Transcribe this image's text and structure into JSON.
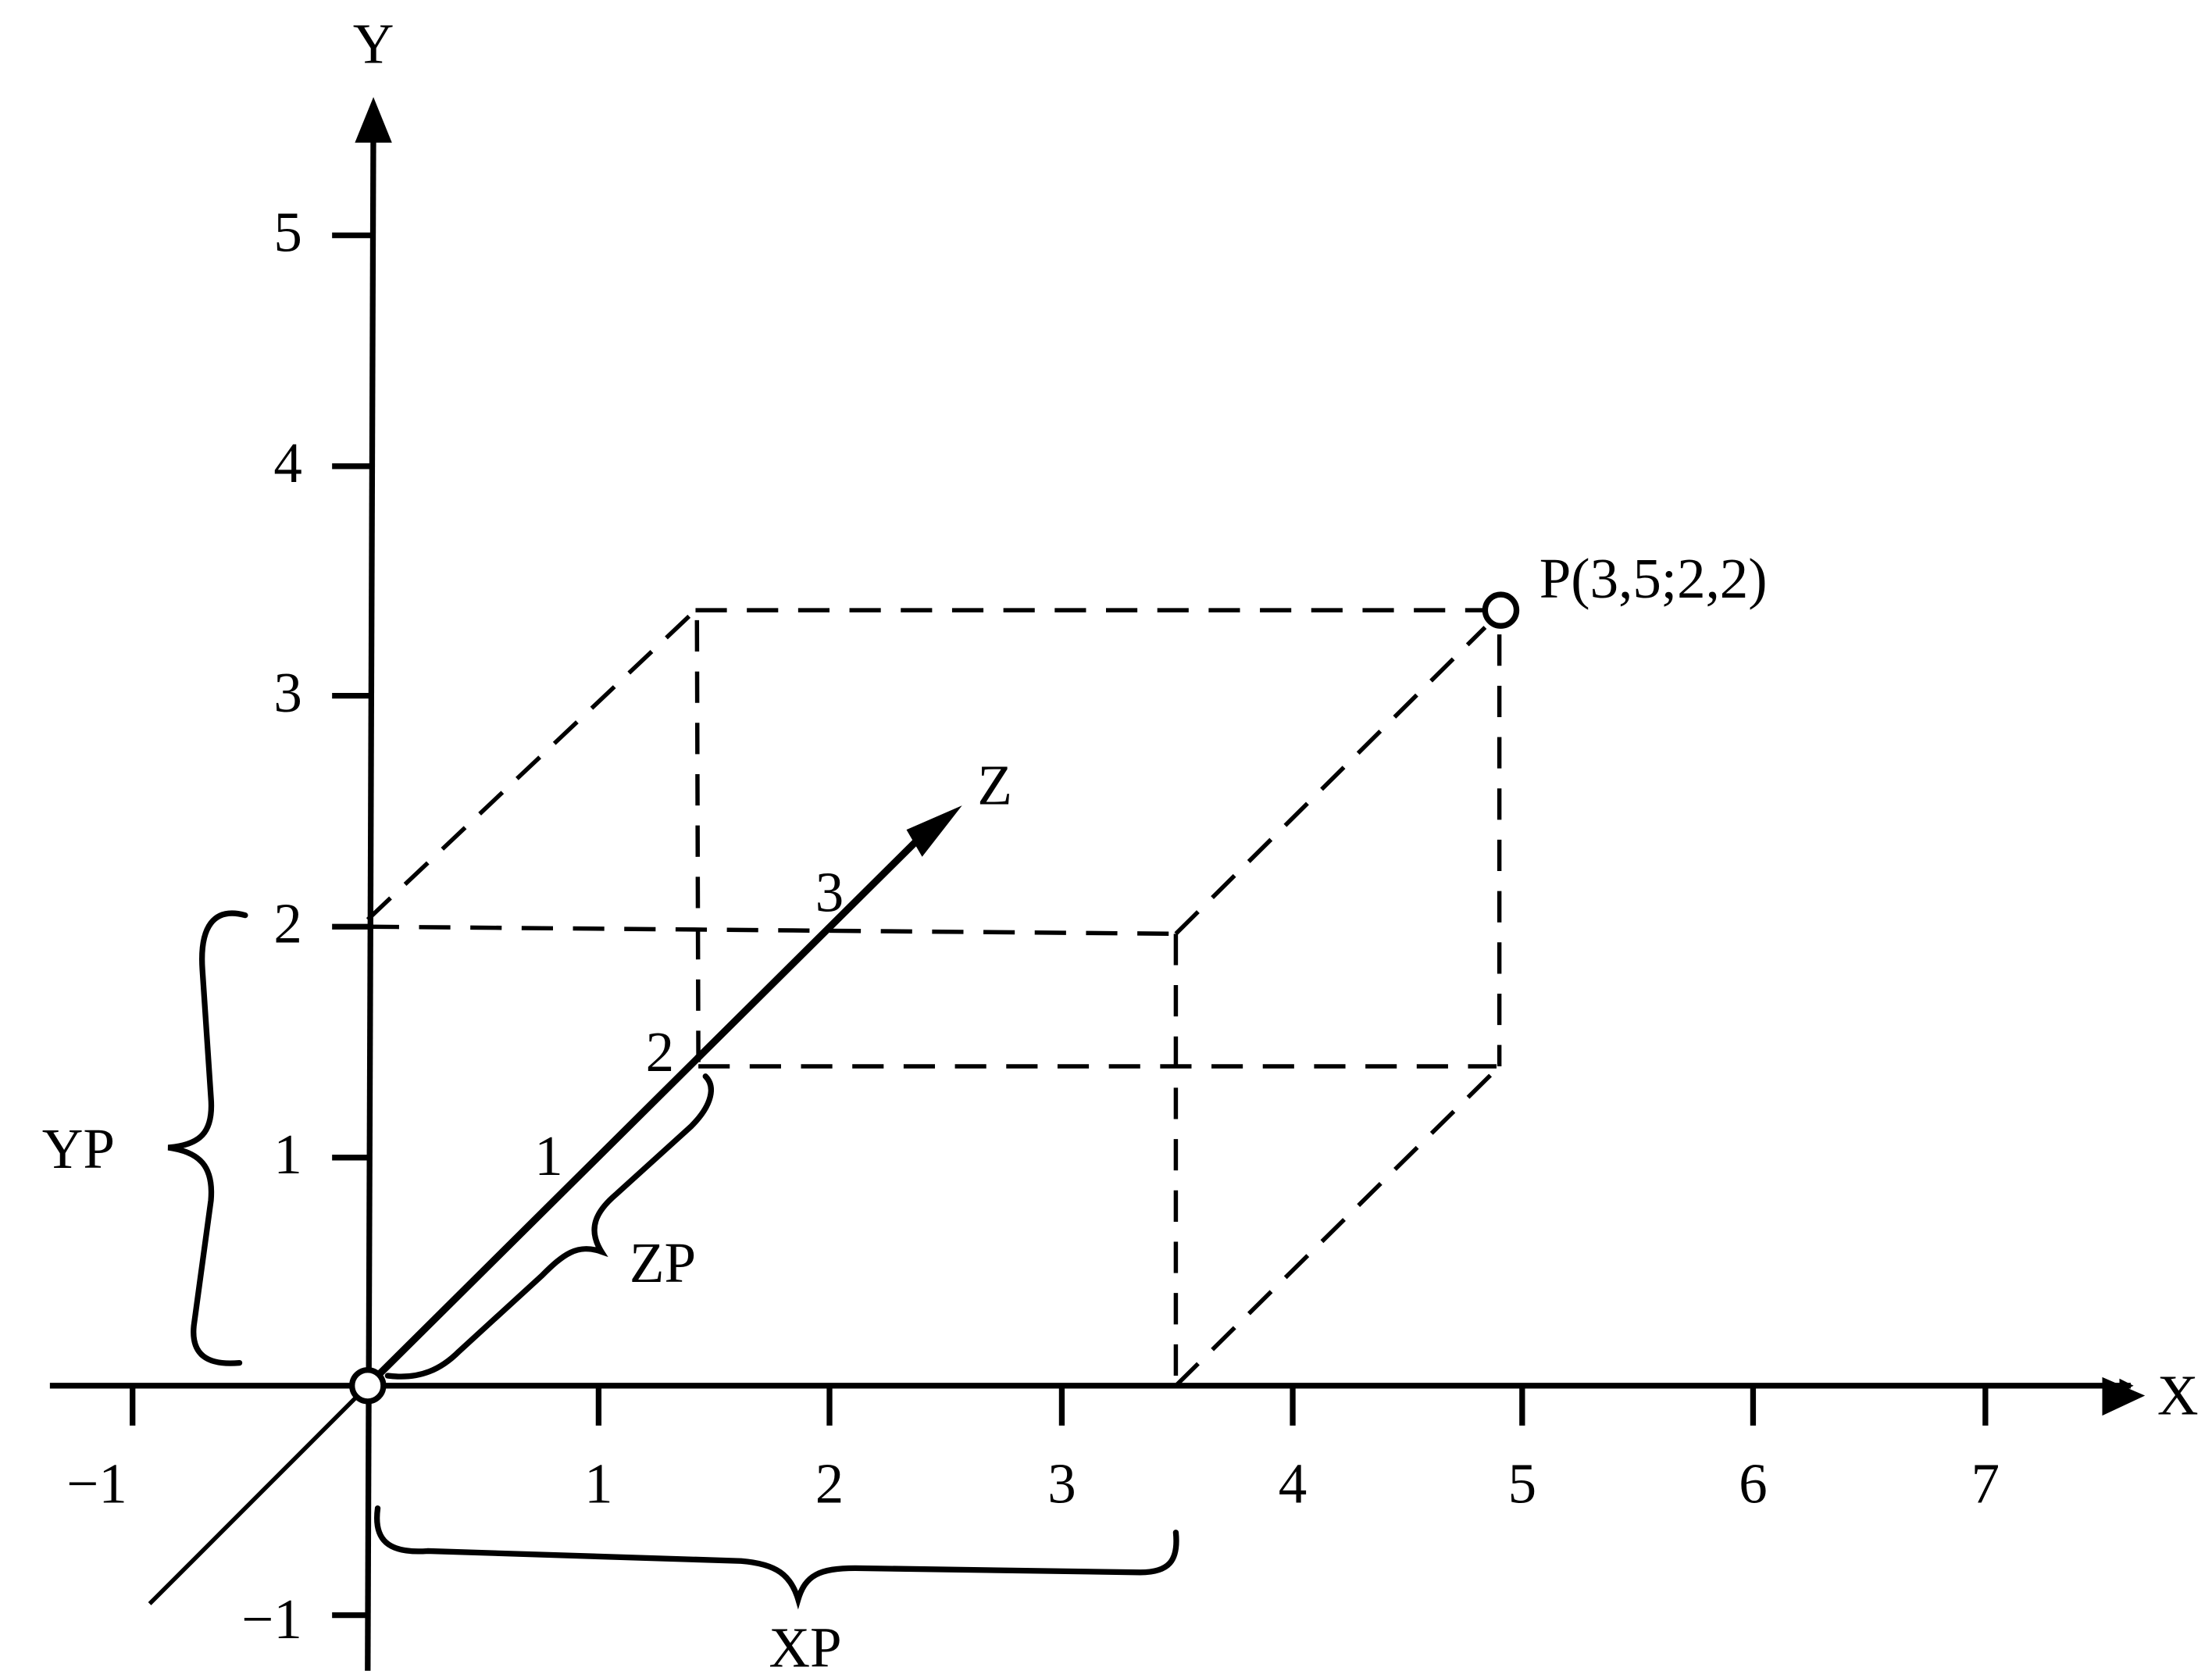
{
  "axes": {
    "x_label": "X",
    "y_label": "Y",
    "z_label": "Z"
  },
  "x_ticks": [
    "−1",
    "1",
    "2",
    "3",
    "4",
    "5",
    "6",
    "7"
  ],
  "y_ticks": [
    "5",
    "4",
    "3",
    "2",
    "1",
    "−1"
  ],
  "z_ticks": [
    "1",
    "2",
    "3"
  ],
  "point": {
    "label": "P(3,5;2,2)"
  },
  "braces": {
    "x": "XP",
    "y": "YP",
    "z": "ZP"
  }
}
